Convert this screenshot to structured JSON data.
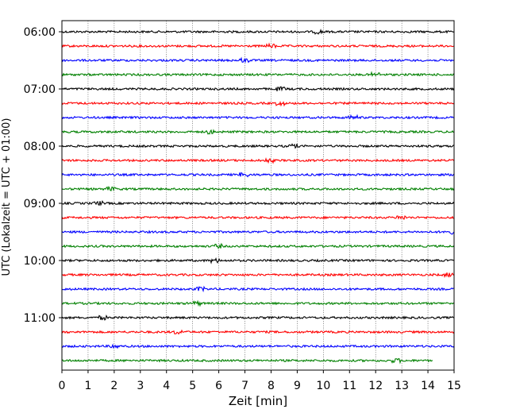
{
  "chart_data": {
    "type": "line",
    "subtype": "helicorder-seismogram",
    "title": "",
    "xlabel": "Zeit  [min]",
    "ylabel": "UTC (Lokalzeit = UTC + 01:00)",
    "xlim": [
      0,
      15
    ],
    "x_ticks": [
      "0",
      "1",
      "2",
      "3",
      "4",
      "5",
      "6",
      "7",
      "8",
      "9",
      "10",
      "11",
      "12",
      "13",
      "14",
      "15"
    ],
    "y_tick_labels": [
      "06:00",
      "07:00",
      "08:00",
      "09:00",
      "10:00",
      "11:00"
    ],
    "grid": "vertical dotted lines at each minute",
    "legend": "none",
    "trace_colors_cycle": [
      "#000000",
      "#ff0000",
      "#0000ff",
      "#008000"
    ],
    "trace_interval_min": 15,
    "series": [
      {
        "start": "06:00",
        "color": "#000000",
        "x_end": 15
      },
      {
        "start": "06:15",
        "color": "#ff0000",
        "x_end": 15
      },
      {
        "start": "06:30",
        "color": "#0000ff",
        "x_end": 15
      },
      {
        "start": "06:45",
        "color": "#008000",
        "x_end": 15
      },
      {
        "start": "07:00",
        "color": "#000000",
        "x_end": 15
      },
      {
        "start": "07:15",
        "color": "#ff0000",
        "x_end": 15
      },
      {
        "start": "07:30",
        "color": "#0000ff",
        "x_end": 15
      },
      {
        "start": "07:45",
        "color": "#008000",
        "x_end": 15
      },
      {
        "start": "08:00",
        "color": "#000000",
        "x_end": 15
      },
      {
        "start": "08:15",
        "color": "#ff0000",
        "x_end": 15
      },
      {
        "start": "08:30",
        "color": "#0000ff",
        "x_end": 15
      },
      {
        "start": "08:45",
        "color": "#008000",
        "x_end": 15
      },
      {
        "start": "09:00",
        "color": "#000000",
        "x_end": 15
      },
      {
        "start": "09:15",
        "color": "#ff0000",
        "x_end": 15
      },
      {
        "start": "09:30",
        "color": "#0000ff",
        "x_end": 15
      },
      {
        "start": "09:45",
        "color": "#008000",
        "x_end": 15
      },
      {
        "start": "10:00",
        "color": "#000000",
        "x_end": 15
      },
      {
        "start": "10:15",
        "color": "#ff0000",
        "x_end": 15
      },
      {
        "start": "10:30",
        "color": "#0000ff",
        "x_end": 15
      },
      {
        "start": "10:45",
        "color": "#008000",
        "x_end": 15
      },
      {
        "start": "11:00",
        "color": "#000000",
        "x_end": 15
      },
      {
        "start": "11:15",
        "color": "#ff0000",
        "x_end": 15
      },
      {
        "start": "11:30",
        "color": "#0000ff",
        "x_end": 15
      },
      {
        "start": "11:45",
        "color": "#008000",
        "x_end": 14.2
      }
    ]
  }
}
